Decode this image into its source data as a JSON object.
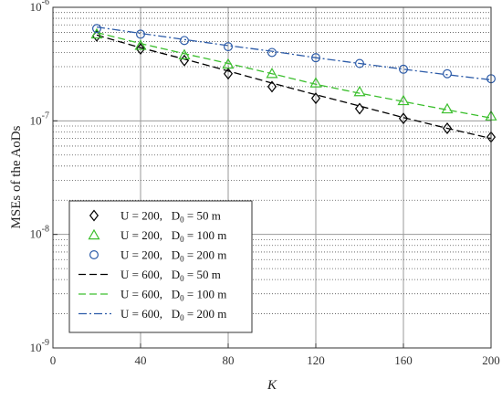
{
  "chart_data": {
    "type": "line",
    "xlabel": "K",
    "ylabel": "MSEs of the AoDs",
    "xlim": [
      0,
      200
    ],
    "ylim": [
      1e-09,
      1e-06
    ],
    "yscale": "log",
    "grid": true,
    "legend_position": "lower-left",
    "x_ticks": [
      "0",
      "40",
      "80",
      "120",
      "160",
      "200"
    ],
    "y_ticks": [
      {
        "base": "10",
        "exp": "-9"
      },
      {
        "base": "10",
        "exp": "-8"
      },
      {
        "base": "10",
        "exp": "-7"
      },
      {
        "base": "10",
        "exp": "-6"
      }
    ],
    "series": [
      {
        "name": "U = 200,   D0 = 50 m",
        "label_parts": {
          "pre": "U = 200,   D",
          "sub": "0",
          "post": " = 50 m"
        },
        "style": "markers",
        "marker": "diamond",
        "color": "#000000",
        "x": [
          20,
          40,
          60,
          80,
          100,
          120,
          140,
          160,
          180,
          200
        ],
        "y": [
          5.6e-07,
          4.3e-07,
          3.4e-07,
          2.6e-07,
          2e-07,
          1.58e-07,
          1.28e-07,
          1.05e-07,
          8.6e-08,
          7.2e-08
        ]
      },
      {
        "name": "U = 200,   D0 = 100 m",
        "label_parts": {
          "pre": "U = 200,   D",
          "sub": "0",
          "post": " = 100 m"
        },
        "style": "markers",
        "marker": "triangle",
        "color": "#3cbf2e",
        "x": [
          20,
          40,
          60,
          80,
          100,
          120,
          140,
          160,
          180,
          200
        ],
        "y": [
          5.8e-07,
          4.6e-07,
          3.8e-07,
          3.15e-07,
          2.6e-07,
          2.15e-07,
          1.8e-07,
          1.5e-07,
          1.27e-07,
          1.1e-07
        ]
      },
      {
        "name": "U = 200,   D0 = 200 m",
        "label_parts": {
          "pre": "U = 200,   D",
          "sub": "0",
          "post": " = 200 m"
        },
        "style": "markers",
        "marker": "circle",
        "color": "#2c5ba8",
        "x": [
          20,
          40,
          60,
          80,
          100,
          120,
          140,
          160,
          180,
          200
        ],
        "y": [
          6.5e-07,
          5.8e-07,
          5.1e-07,
          4.5e-07,
          4e-07,
          3.6e-07,
          3.2e-07,
          2.85e-07,
          2.6e-07,
          2.35e-07
        ]
      },
      {
        "name": "U = 600,   D0 = 50 m",
        "label_parts": {
          "pre": "U = 600,   D",
          "sub": "0",
          "post": " = 50 m"
        },
        "style": "dashed",
        "color": "#000000",
        "x": [
          20,
          40,
          60,
          80,
          100,
          120,
          140,
          160,
          180,
          200
        ],
        "y": [
          5.7e-07,
          4.4e-07,
          3.5e-07,
          2.75e-07,
          2.15e-07,
          1.7e-07,
          1.35e-07,
          1.07e-07,
          8.6e-08,
          7e-08
        ]
      },
      {
        "name": "U = 600,   D0 = 100 m",
        "label_parts": {
          "pre": "U = 600,   D",
          "sub": "0",
          "post": " = 100 m"
        },
        "style": "dashed",
        "color": "#3cbf2e",
        "x": [
          20,
          40,
          60,
          80,
          100,
          120,
          140,
          160,
          180,
          200
        ],
        "y": [
          6e-07,
          4.8e-07,
          3.9e-07,
          3.2e-07,
          2.6e-07,
          2.1e-07,
          1.75e-07,
          1.48e-07,
          1.25e-07,
          1.06e-07
        ]
      },
      {
        "name": "U = 600,   D0 = 200 m",
        "label_parts": {
          "pre": "U = 600,   D",
          "sub": "0",
          "post": " = 200 m"
        },
        "style": "dashdot",
        "color": "#2c5ba8",
        "x": [
          20,
          40,
          60,
          80,
          100,
          120,
          140,
          160,
          180,
          200
        ],
        "y": [
          6.7e-07,
          5.9e-07,
          5.2e-07,
          4.6e-07,
          4.1e-07,
          3.6e-07,
          3.2e-07,
          2.85e-07,
          2.55e-07,
          2.3e-07
        ]
      }
    ]
  }
}
